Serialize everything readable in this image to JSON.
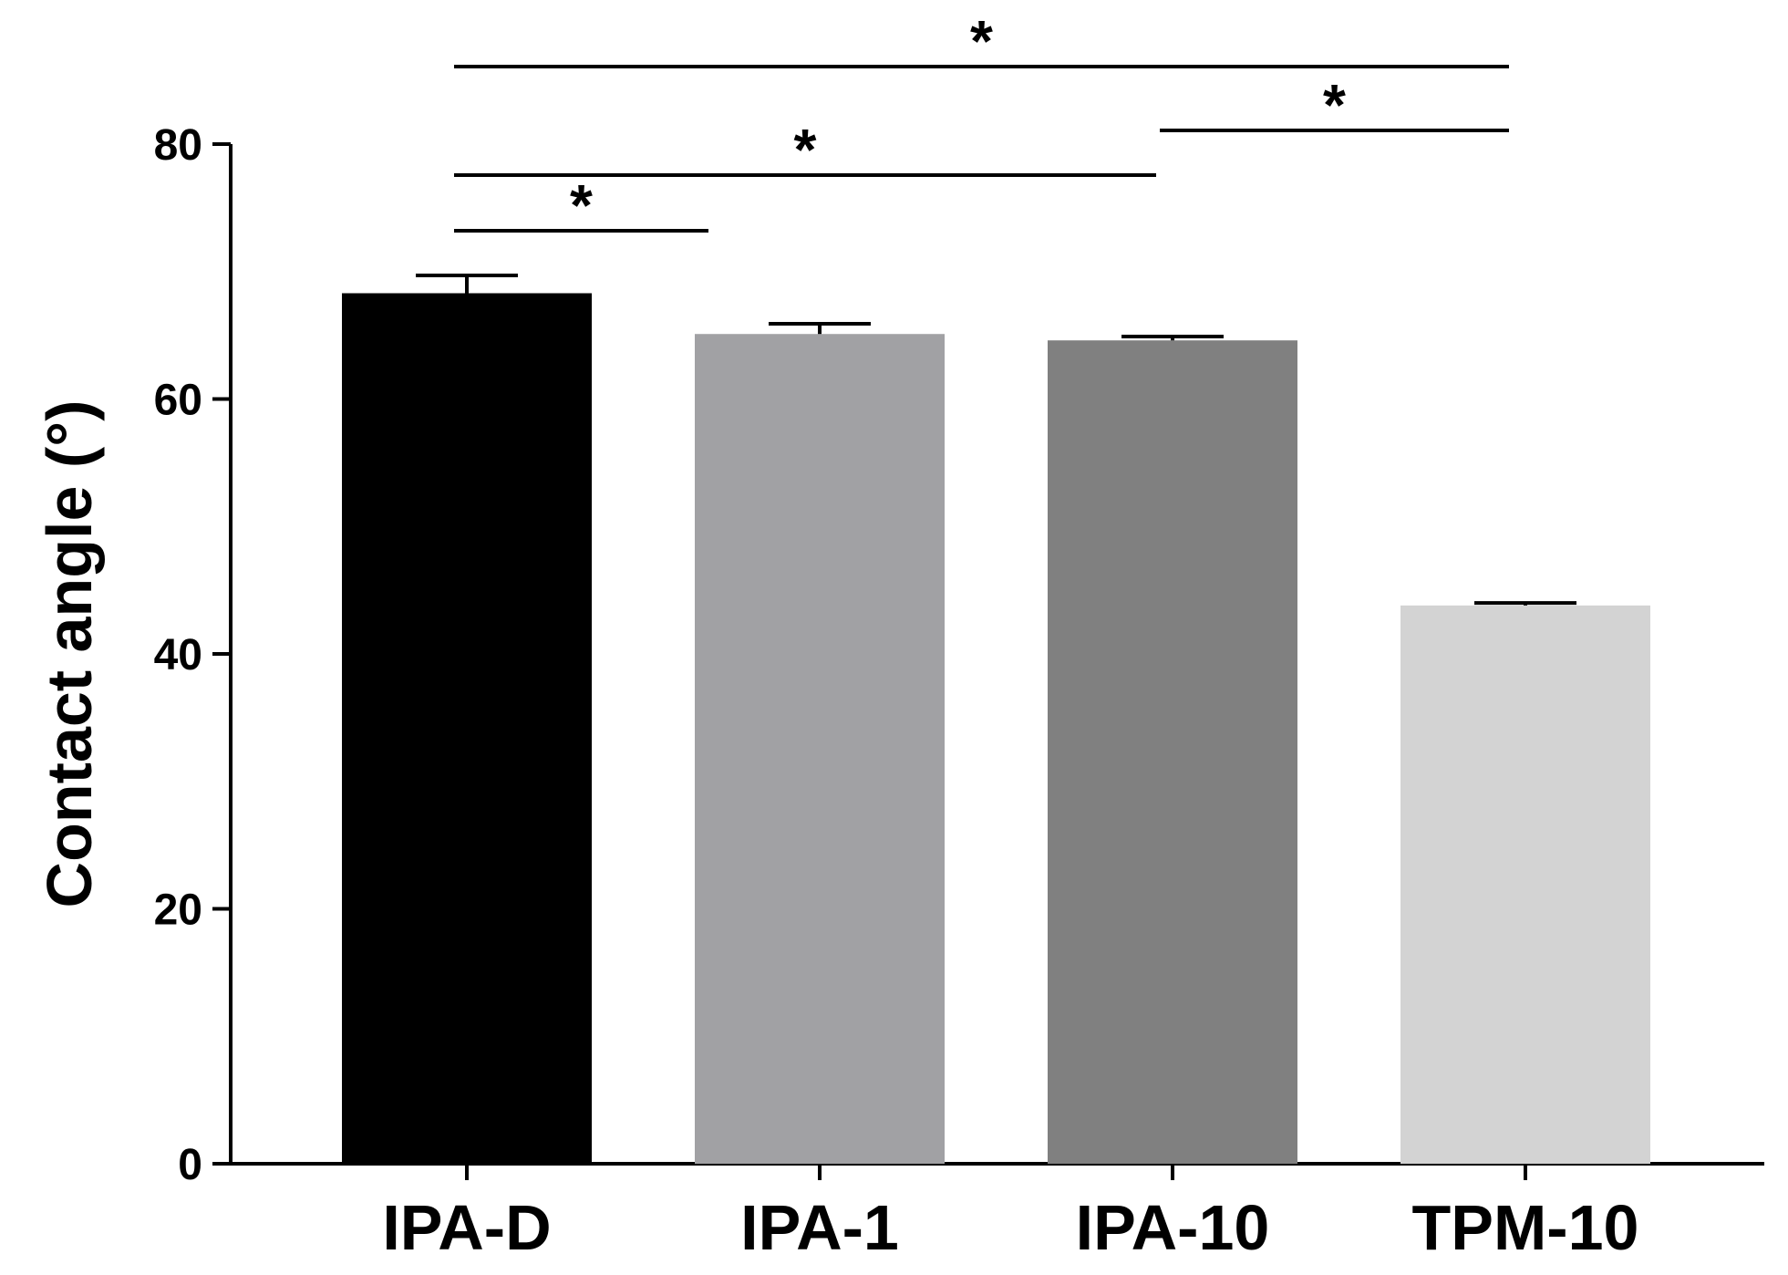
{
  "chart_data": {
    "type": "bar",
    "title": "",
    "xlabel": "",
    "ylabel": "Contact angle (°)",
    "ylim": [
      0,
      80
    ],
    "yticks": [
      "0",
      "20",
      "40",
      "60",
      "80"
    ],
    "grid": false,
    "legend": "none",
    "categories": [
      "IPA-D",
      "IPA-1",
      "IPA-10",
      "TPM-10"
    ],
    "values": [
      68.3,
      65.1,
      64.6,
      43.8
    ],
    "errors": [
      1.4,
      0.8,
      0.3,
      0.2
    ],
    "colors": [
      "#000000",
      "#a1a1a4",
      "#808080",
      "#d3d3d3"
    ],
    "significance": [
      {
        "from": "IPA-D",
        "to": "IPA-1",
        "label": "*"
      },
      {
        "from": "IPA-D",
        "to": "IPA-10",
        "label": "*"
      },
      {
        "from": "IPA-10",
        "to": "TPM-10",
        "label": "*"
      },
      {
        "from": "IPA-D",
        "to": "TPM-10",
        "label": "*"
      }
    ]
  }
}
